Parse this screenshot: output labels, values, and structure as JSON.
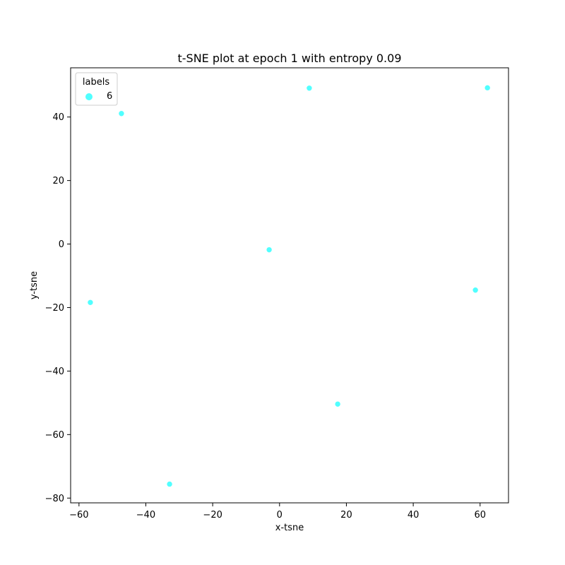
{
  "chart_data": {
    "type": "scatter",
    "title": "t-SNE plot at epoch 1 with entropy 0.09",
    "xlabel": "x-tsne",
    "ylabel": "y-tsne",
    "xlim": [
      -62.5,
      68.5
    ],
    "ylim": [
      -81.5,
      55.5
    ],
    "xticks": [
      -60,
      -40,
      -20,
      0,
      20,
      40,
      60
    ],
    "yticks": [
      -80,
      -60,
      -40,
      -20,
      0,
      20,
      40
    ],
    "grid": false,
    "legend": {
      "title": "labels",
      "placement": "top-left",
      "entries": [
        "6"
      ]
    },
    "series": [
      {
        "name": "6",
        "color": "#33ffff",
        "points": [
          {
            "x": -47.3,
            "y": 41.1
          },
          {
            "x": 8.9,
            "y": 49.1
          },
          {
            "x": 62.2,
            "y": 49.2
          },
          {
            "x": -3.1,
            "y": -1.8
          },
          {
            "x": -56.6,
            "y": -18.4
          },
          {
            "x": 58.6,
            "y": -14.5
          },
          {
            "x": 17.4,
            "y": -50.4
          },
          {
            "x": -32.9,
            "y": -75.6
          }
        ]
      }
    ]
  }
}
